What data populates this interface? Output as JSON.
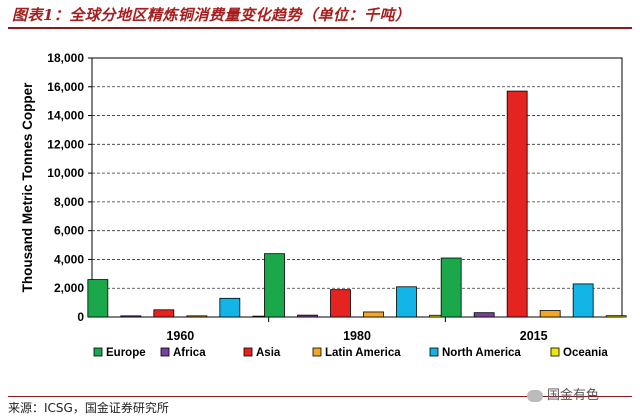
{
  "header": {
    "title": "图表1：全球分地区精炼铜消费量变化趋势（单位：千吨）"
  },
  "footer": {
    "source": "来源：ICSG，国金证券研究所",
    "watermark": "国金有色"
  },
  "chart_data": {
    "type": "bar",
    "title": "",
    "xlabel": "",
    "ylabel": "Thousand Metric Tonnes Copper",
    "ylim": [
      0,
      18000
    ],
    "yticks": [
      "0",
      "2,000",
      "4,000",
      "6,000",
      "8,000",
      "10,000",
      "12,000",
      "14,000",
      "16,000",
      "18,000"
    ],
    "grid": "horizontal dashed",
    "legend_position": "bottom",
    "categories": [
      "1960",
      "1980",
      "2015"
    ],
    "series": [
      {
        "name": "Europe",
        "color": "#1aa84b",
        "values": [
          2600,
          4400,
          4100
        ]
      },
      {
        "name": "Africa",
        "color": "#7b3fa0",
        "values": [
          80,
          130,
          300
        ]
      },
      {
        "name": "Asia",
        "color": "#e52320",
        "values": [
          500,
          1900,
          15700
        ]
      },
      {
        "name": "Latin America",
        "color": "#f5a623",
        "values": [
          80,
          350,
          450
        ]
      },
      {
        "name": "North America",
        "color": "#12b5e6",
        "values": [
          1300,
          2100,
          2300
        ]
      },
      {
        "name": "Oceania",
        "color": "#f3e600",
        "values": [
          60,
          120,
          90
        ]
      }
    ]
  }
}
